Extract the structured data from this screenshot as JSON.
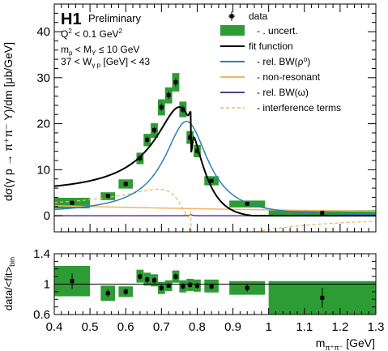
{
  "chart_data": [
    {
      "type": "line",
      "experiment": "H1",
      "status": "Preliminary",
      "cuts": [
        "Q² < 0.1 GeV²",
        "m_p < M_Y ≤ 10 GeV",
        "37 < W_γp [GeV] < 43"
      ],
      "cut_parts": {
        "q2": "Q",
        "q2_sup": "2",
        "q2_mid": " < 0.1 GeV",
        "q2_unit_sup": "2",
        "mp": "m",
        "mp_sub": "p",
        "mp_mid": " < M",
        "mp_sub2": "Y",
        "mp_end": " ≤ 10 GeV",
        "w_pre": "37 < W",
        "w_sub": "γ p",
        "w_end": " [GeV] < 43"
      },
      "ylabel": "dσ(γ p → π⁺π⁻ Y)/dm [μb/GeV]",
      "xlim": [
        0.4,
        1.3
      ],
      "ylim": [
        -3.5,
        46
      ],
      "xticks": [
        "0.4",
        "0.5",
        "0.6",
        "0.7",
        "0.8",
        "0.9",
        "1",
        "1.1",
        "1.2",
        "1.3"
      ],
      "yticks": [
        "0",
        "10",
        "20",
        "30",
        "40"
      ],
      "legend_position": "top-right",
      "legend": {
        "data": "data",
        "uncert": "- . uncert.",
        "fit": "fit function",
        "bw_rho": "- rel. BW(ρ⁰)",
        "nonres": "- non-resonant",
        "bw_omega": "- rel. BW(ω)",
        "interf": "- interference terms"
      },
      "colors": {
        "data": "#000000",
        "uncert": "#2e9c34",
        "fit": "#000000",
        "bw_rho": "#2a7fb8",
        "nonres": "#f2b566",
        "bw_omega": "#5a3a8a",
        "interf": "#f2b566"
      },
      "data_points": [
        {
          "x": 0.45,
          "y": 2.8,
          "err": 0.5,
          "band": [
            1.6,
            3.9
          ],
          "xw": 0.05
        },
        {
          "x": 0.55,
          "y": 4.3,
          "err": 0.4,
          "band": [
            3.4,
            5.1
          ],
          "xw": 0.02
        },
        {
          "x": 0.6,
          "y": 6.9,
          "err": 0.5,
          "band": [
            5.9,
            7.9
          ],
          "xw": 0.02
        },
        {
          "x": 0.64,
          "y": 12.5,
          "err": 0.6,
          "band": [
            11.2,
            13.7
          ],
          "xw": 0.01
        },
        {
          "x": 0.66,
          "y": 16.5,
          "err": 0.7,
          "band": [
            15.1,
            17.8
          ],
          "xw": 0.01
        },
        {
          "x": 0.68,
          "y": 18.6,
          "err": 0.7,
          "band": [
            16.9,
            20.1
          ],
          "xw": 0.01
        },
        {
          "x": 0.7,
          "y": 23.6,
          "err": 0.8,
          "band": [
            21.8,
            25.3
          ],
          "xw": 0.01
        },
        {
          "x": 0.72,
          "y": 26.2,
          "err": 0.8,
          "band": [
            24.4,
            27.9
          ],
          "xw": 0.01
        },
        {
          "x": 0.74,
          "y": 29.0,
          "err": 0.9,
          "band": [
            27.0,
            31.0
          ],
          "xw": 0.01
        },
        {
          "x": 0.76,
          "y": 23.1,
          "err": 0.8,
          "band": [
            21.4,
            24.8
          ],
          "xw": 0.01
        },
        {
          "x": 0.78,
          "y": 17.0,
          "err": 0.7,
          "band": [
            15.6,
            18.4
          ],
          "xw": 0.01
        },
        {
          "x": 0.8,
          "y": 14.1,
          "err": 0.6,
          "band": [
            12.7,
            15.4
          ],
          "xw": 0.01
        },
        {
          "x": 0.84,
          "y": 7.6,
          "err": 0.4,
          "band": [
            6.6,
            8.6
          ],
          "xw": 0.02
        },
        {
          "x": 0.94,
          "y": 2.6,
          "err": 0.3,
          "band": [
            1.8,
            3.3
          ],
          "xw": 0.05
        },
        {
          "x": 1.15,
          "y": 0.6,
          "err": 0.2,
          "band": [
            0.0,
            1.2
          ],
          "xw": 0.15
        }
      ]
    },
    {
      "type": "scatter",
      "ylabel": "data/<fit>_bin",
      "ylabel_parts": {
        "main": "data/<fit>",
        "sub": "bin"
      },
      "xlabel": "m_π⁺π⁻ [GeV]",
      "xlabel_parts": {
        "main": "m",
        "sub": "π⁺π⁻",
        "unit": " [GeV]"
      },
      "xlim": [
        0.4,
        1.3
      ],
      "ylim": [
        0.6,
        1.4
      ],
      "yticks": [
        "0.6",
        "1",
        "1.4"
      ],
      "reference_line": 1.0,
      "ratios": [
        {
          "x": 0.45,
          "y": 1.04,
          "err": 0.1,
          "band": [
            0.84,
            1.24
          ]
        },
        {
          "x": 0.55,
          "y": 0.88,
          "err": 0.05,
          "band": [
            0.78,
            0.98
          ]
        },
        {
          "x": 0.6,
          "y": 0.9,
          "err": 0.04,
          "band": [
            0.83,
            0.97
          ]
        },
        {
          "x": 0.64,
          "y": 1.1,
          "err": 0.04,
          "band": [
            1.02,
            1.19
          ]
        },
        {
          "x": 0.66,
          "y": 1.06,
          "err": 0.04,
          "band": [
            0.98,
            1.15
          ]
        },
        {
          "x": 0.68,
          "y": 1.05,
          "err": 0.04,
          "band": [
            0.97,
            1.13
          ]
        },
        {
          "x": 0.7,
          "y": 0.95,
          "err": 0.04,
          "band": [
            0.87,
            1.03
          ]
        },
        {
          "x": 0.72,
          "y": 0.98,
          "err": 0.03,
          "band": [
            0.91,
            1.05
          ]
        },
        {
          "x": 0.74,
          "y": 1.1,
          "err": 0.04,
          "band": [
            1.02,
            1.18
          ]
        },
        {
          "x": 0.76,
          "y": 0.97,
          "err": 0.04,
          "band": [
            0.89,
            1.05
          ]
        },
        {
          "x": 0.78,
          "y": 0.99,
          "err": 0.04,
          "band": [
            0.91,
            1.07
          ]
        },
        {
          "x": 0.8,
          "y": 0.98,
          "err": 0.04,
          "band": [
            0.9,
            1.06
          ]
        },
        {
          "x": 0.84,
          "y": 0.97,
          "err": 0.04,
          "band": [
            0.89,
            1.06
          ]
        },
        {
          "x": 0.94,
          "y": 0.95,
          "err": 0.05,
          "band": [
            0.86,
            1.04
          ]
        },
        {
          "x": 1.15,
          "y": 0.82,
          "err": 0.13,
          "band": [
            0.6,
            1.04
          ]
        }
      ]
    }
  ]
}
